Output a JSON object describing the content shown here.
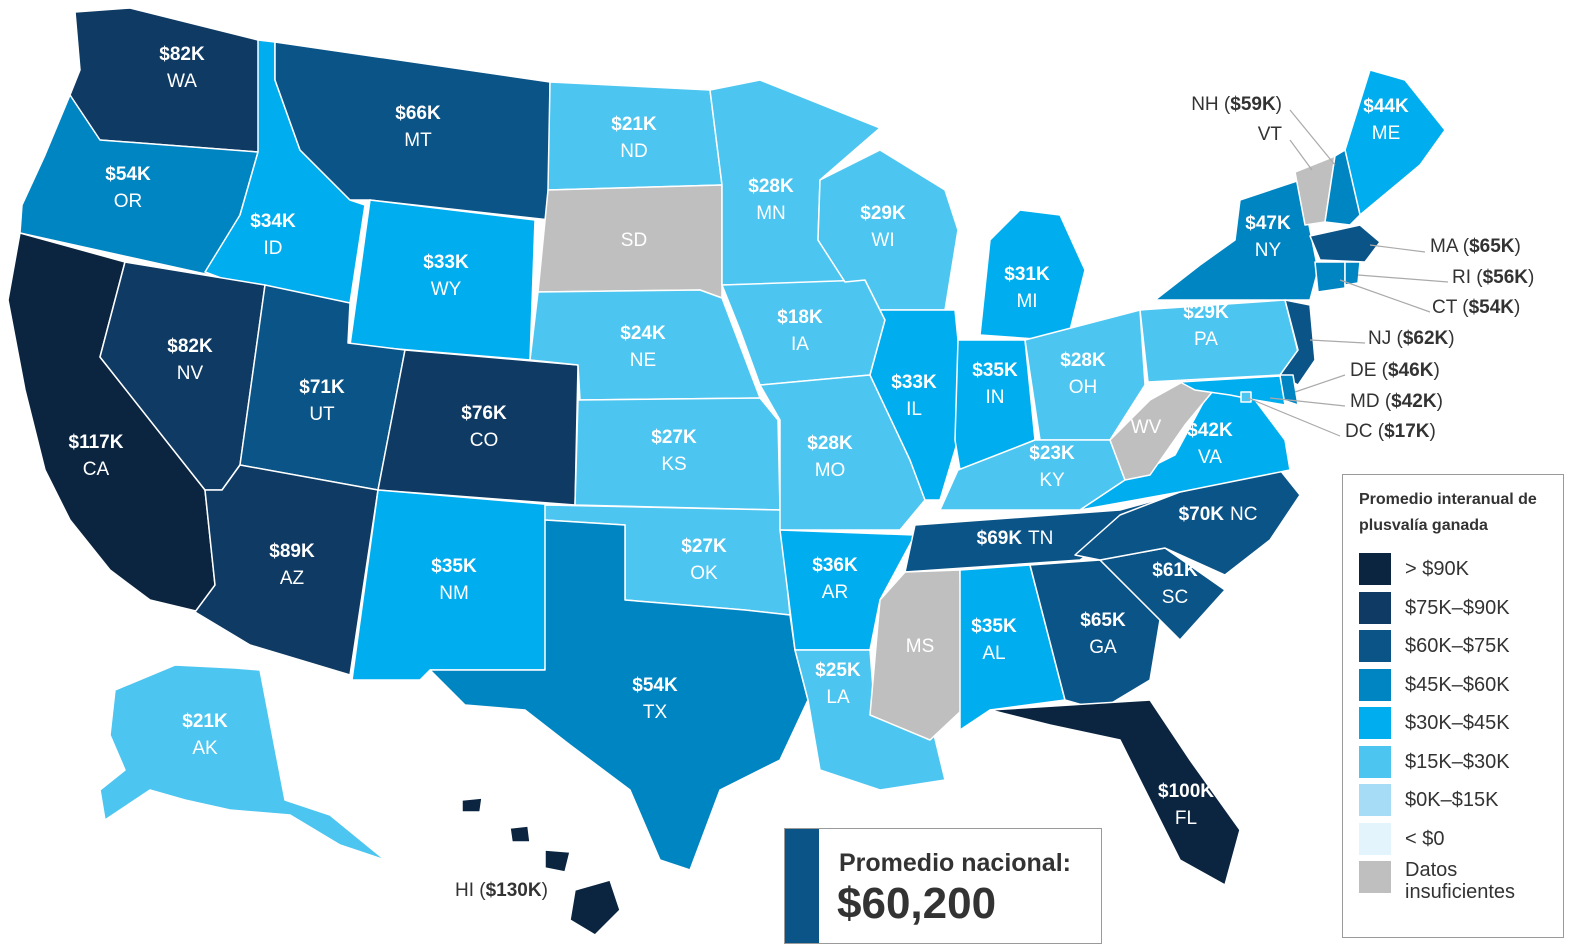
{
  "colors": {
    "gt90": "#0b2540",
    "b75_90": "#0e3a63",
    "b60_75": "#0b5487",
    "b45_60": "#0085c3",
    "b30_45": "#00aeef",
    "b15_30": "#4cc5f0",
    "b0_15": "#a6dcf5",
    "lt0": "#e4f4fc",
    "nodata": "#bfbfbf"
  },
  "states": [
    {
      "abbr": "WA",
      "value": "$82K",
      "bucket": "b75_90"
    },
    {
      "abbr": "OR",
      "value": "$54K",
      "bucket": "b45_60"
    },
    {
      "abbr": "CA",
      "value": "$117K",
      "bucket": "gt90"
    },
    {
      "abbr": "ID",
      "value": "$34K",
      "bucket": "b30_45"
    },
    {
      "abbr": "NV",
      "value": "$82K",
      "bucket": "b75_90"
    },
    {
      "abbr": "MT",
      "value": "$66K",
      "bucket": "b60_75"
    },
    {
      "abbr": "WY",
      "value": "$33K",
      "bucket": "b30_45"
    },
    {
      "abbr": "UT",
      "value": "$71K",
      "bucket": "b60_75"
    },
    {
      "abbr": "CO",
      "value": "$76K",
      "bucket": "b75_90"
    },
    {
      "abbr": "AZ",
      "value": "$89K",
      "bucket": "b75_90"
    },
    {
      "abbr": "NM",
      "value": "$35K",
      "bucket": "b30_45"
    },
    {
      "abbr": "ND",
      "value": "$21K",
      "bucket": "b15_30"
    },
    {
      "abbr": "SD",
      "value": "",
      "bucket": "nodata"
    },
    {
      "abbr": "NE",
      "value": "$24K",
      "bucket": "b15_30"
    },
    {
      "abbr": "KS",
      "value": "$27K",
      "bucket": "b15_30"
    },
    {
      "abbr": "OK",
      "value": "$27K",
      "bucket": "b15_30"
    },
    {
      "abbr": "TX",
      "value": "$54K",
      "bucket": "b45_60"
    },
    {
      "abbr": "MN",
      "value": "$28K",
      "bucket": "b15_30"
    },
    {
      "abbr": "IA",
      "value": "$18K",
      "bucket": "b15_30"
    },
    {
      "abbr": "MO",
      "value": "$28K",
      "bucket": "b15_30"
    },
    {
      "abbr": "AR",
      "value": "$36K",
      "bucket": "b30_45"
    },
    {
      "abbr": "LA",
      "value": "$25K",
      "bucket": "b15_30"
    },
    {
      "abbr": "WI",
      "value": "$29K",
      "bucket": "b15_30"
    },
    {
      "abbr": "IL",
      "value": "$33K",
      "bucket": "b30_45"
    },
    {
      "abbr": "MI",
      "value": "$31K",
      "bucket": "b30_45"
    },
    {
      "abbr": "IN",
      "value": "$35K",
      "bucket": "b30_45"
    },
    {
      "abbr": "OH",
      "value": "$28K",
      "bucket": "b15_30"
    },
    {
      "abbr": "KY",
      "value": "$23K",
      "bucket": "b15_30"
    },
    {
      "abbr": "TN",
      "value": "$69K",
      "bucket": "b60_75"
    },
    {
      "abbr": "MS",
      "value": "",
      "bucket": "nodata"
    },
    {
      "abbr": "AL",
      "value": "$35K",
      "bucket": "b30_45"
    },
    {
      "abbr": "GA",
      "value": "$65K",
      "bucket": "b60_75"
    },
    {
      "abbr": "FL",
      "value": "$100K",
      "bucket": "gt90"
    },
    {
      "abbr": "SC",
      "value": "$61K",
      "bucket": "b60_75"
    },
    {
      "abbr": "NC",
      "value": "$70K",
      "bucket": "b60_75"
    },
    {
      "abbr": "VA",
      "value": "$42K",
      "bucket": "b30_45"
    },
    {
      "abbr": "WV",
      "value": "",
      "bucket": "nodata"
    },
    {
      "abbr": "PA",
      "value": "$29K",
      "bucket": "b15_30"
    },
    {
      "abbr": "NY",
      "value": "$47K",
      "bucket": "b45_60"
    },
    {
      "abbr": "ME",
      "value": "$44K",
      "bucket": "b30_45"
    },
    {
      "abbr": "VT",
      "value": "",
      "bucket": "nodata"
    },
    {
      "abbr": "NH",
      "value": "$59K",
      "bucket": "b45_60"
    },
    {
      "abbr": "MA",
      "value": "$65K",
      "bucket": "b60_75"
    },
    {
      "abbr": "RI",
      "value": "$56K",
      "bucket": "b45_60"
    },
    {
      "abbr": "CT",
      "value": "$54K",
      "bucket": "b45_60"
    },
    {
      "abbr": "NJ",
      "value": "$62K",
      "bucket": "b60_75"
    },
    {
      "abbr": "DE",
      "value": "$46K",
      "bucket": "b45_60"
    },
    {
      "abbr": "MD",
      "value": "$42K",
      "bucket": "b30_45"
    },
    {
      "abbr": "DC",
      "value": "$17K",
      "bucket": "b15_30"
    },
    {
      "abbr": "AK",
      "value": "$21K",
      "bucket": "b15_30"
    },
    {
      "abbr": "HI",
      "value": "$130K",
      "bucket": "gt90"
    }
  ],
  "legend": {
    "title": "Promedio interanual de plusvalía ganada",
    "items": [
      {
        "label": "> $90K",
        "bucket": "gt90"
      },
      {
        "label": "$75K–$90K",
        "bucket": "b75_90"
      },
      {
        "label": "$60K–$75K",
        "bucket": "b60_75"
      },
      {
        "label": "$45K–$60K",
        "bucket": "b45_60"
      },
      {
        "label": "$30K–$45K",
        "bucket": "b30_45"
      },
      {
        "label": "$15K–$30K",
        "bucket": "b15_30"
      },
      {
        "label": "$0K–$15K",
        "bucket": "b0_15"
      },
      {
        "label": "< $0",
        "bucket": "lt0"
      },
      {
        "label": "Datos insuficientes",
        "bucket": "nodata"
      }
    ]
  },
  "national": {
    "label": "Promedio nacional:",
    "value": "$60,200"
  }
}
